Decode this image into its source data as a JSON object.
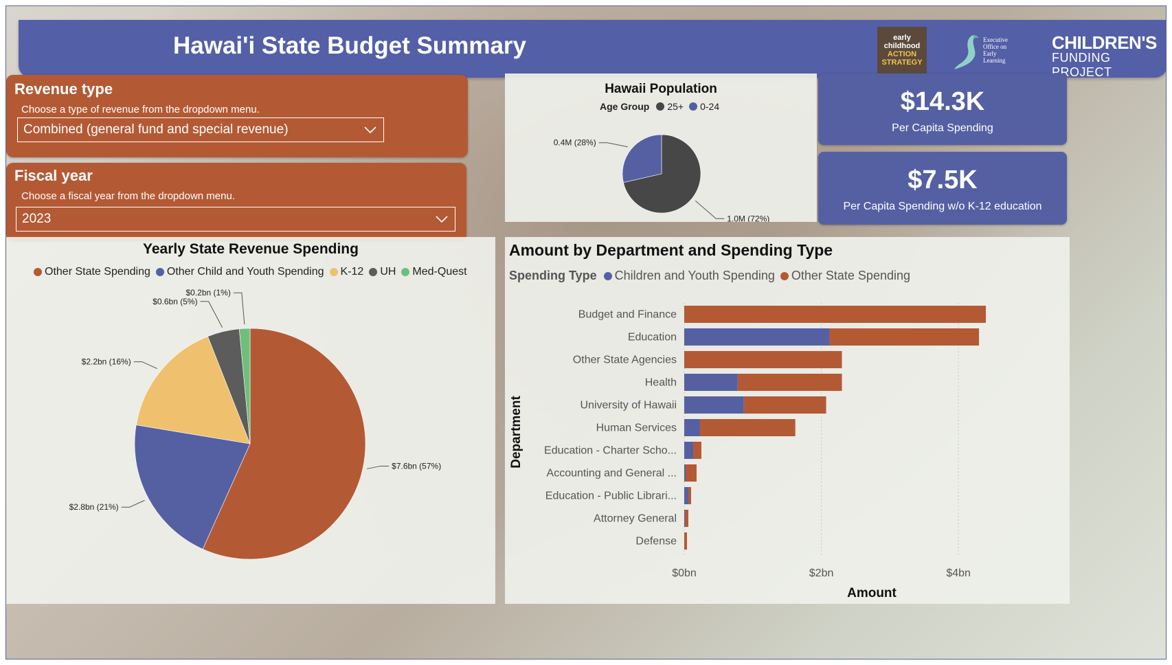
{
  "header": {
    "title": "Hawai'i State Budget Summary",
    "logos": {
      "ecas": [
        "early",
        "childhood",
        "ACTION",
        "STRATEGY"
      ],
      "eoel": [
        "Executive",
        "Office on",
        "Early",
        "Learning"
      ],
      "cfp": [
        "CHILDREN'S",
        "FUNDING PROJECT"
      ]
    }
  },
  "revenue_slicer": {
    "title": "Revenue type",
    "description": "Choose a type of revenue from the dropdown menu.",
    "selected": "Combined (general fund and special revenue)"
  },
  "year_slicer": {
    "title": "Fiscal year",
    "description": "Choose a fiscal year from the dropdown menu.",
    "selected": "2023"
  },
  "population": {
    "title": "Hawaii Population",
    "legend_title": "Age Group",
    "legend": [
      {
        "label": "25+",
        "color": "#474747"
      },
      {
        "label": "0-24",
        "color": "#5560a3"
      }
    ]
  },
  "kpis": [
    {
      "value": "$14.3K",
      "label": "Per Capita Spending"
    },
    {
      "value": "$7.5K",
      "label": "Per Capita Spending w/o K-12 education"
    }
  ],
  "revenue_pie": {
    "title": "Yearly State Revenue Spending",
    "legend": [
      {
        "label": "Other State Spending",
        "color": "#b35a35"
      },
      {
        "label": "Other Child and Youth Spending",
        "color": "#5560a3"
      },
      {
        "label": "K-12",
        "color": "#efc16e"
      },
      {
        "label": "UH",
        "color": "#5c5c5c"
      },
      {
        "label": "Med-Quest",
        "color": "#6ebf7b"
      }
    ]
  },
  "dept_chart": {
    "title": "Amount by Department and Spending Type",
    "legend_title": "Spending Type",
    "legend": [
      {
        "label": "Children and Youth Spending",
        "color": "#5560a3"
      },
      {
        "label": "Other State Spending",
        "color": "#b35a35"
      }
    ],
    "xlabel": "Amount",
    "ylabel": "Department",
    "ticks": [
      "$0bn",
      "$2bn",
      "$4bn"
    ]
  },
  "chart_data": [
    {
      "type": "pie",
      "title": "Hawaii Population",
      "categories": [
        "25+",
        "0-24"
      ],
      "values": [
        1.0,
        0.4
      ],
      "labels": [
        "1.0M (72%)",
        "0.4M (28%)"
      ],
      "colors": [
        "#474747",
        "#5560a3"
      ]
    },
    {
      "type": "pie",
      "title": "Yearly State Revenue Spending",
      "categories": [
        "Other State Spending",
        "Other Child and Youth Spending",
        "K-12",
        "UH",
        "Med-Quest"
      ],
      "values": [
        7.6,
        2.8,
        2.2,
        0.6,
        0.2
      ],
      "labels": [
        "$7.6bn (57%)",
        "$2.8bn (21%)",
        "$2.2bn (16%)",
        "$0.6bn (5%)",
        "$0.2bn (1%)"
      ],
      "colors": [
        "#b35a35",
        "#5560a3",
        "#efc16e",
        "#5c5c5c",
        "#6ebf7b"
      ]
    },
    {
      "type": "bar",
      "orientation": "horizontal",
      "stacked": true,
      "title": "Amount by Department and Spending Type",
      "xlabel": "Amount",
      "ylabel": "Department",
      "xlim": [
        0,
        4.6
      ],
      "categories": [
        "Budget and Finance",
        "Education",
        "Other State Agencies",
        "Health",
        "University of Hawaii",
        "Human Services",
        "Education - Charter Scho...",
        "Accounting and General ...",
        "Education - Public Librari...",
        "Attorney General",
        "Defense"
      ],
      "series": [
        {
          "name": "Children and Youth Spending",
          "values": [
            0,
            2.12,
            0,
            0.78,
            0.87,
            0.23,
            0.13,
            0.02,
            0.06,
            0.01,
            0.0
          ]
        },
        {
          "name": "Other State Spending",
          "values": [
            4.4,
            2.18,
            2.3,
            1.52,
            1.2,
            1.39,
            0.12,
            0.16,
            0.04,
            0.05,
            0.04
          ]
        }
      ]
    }
  ]
}
